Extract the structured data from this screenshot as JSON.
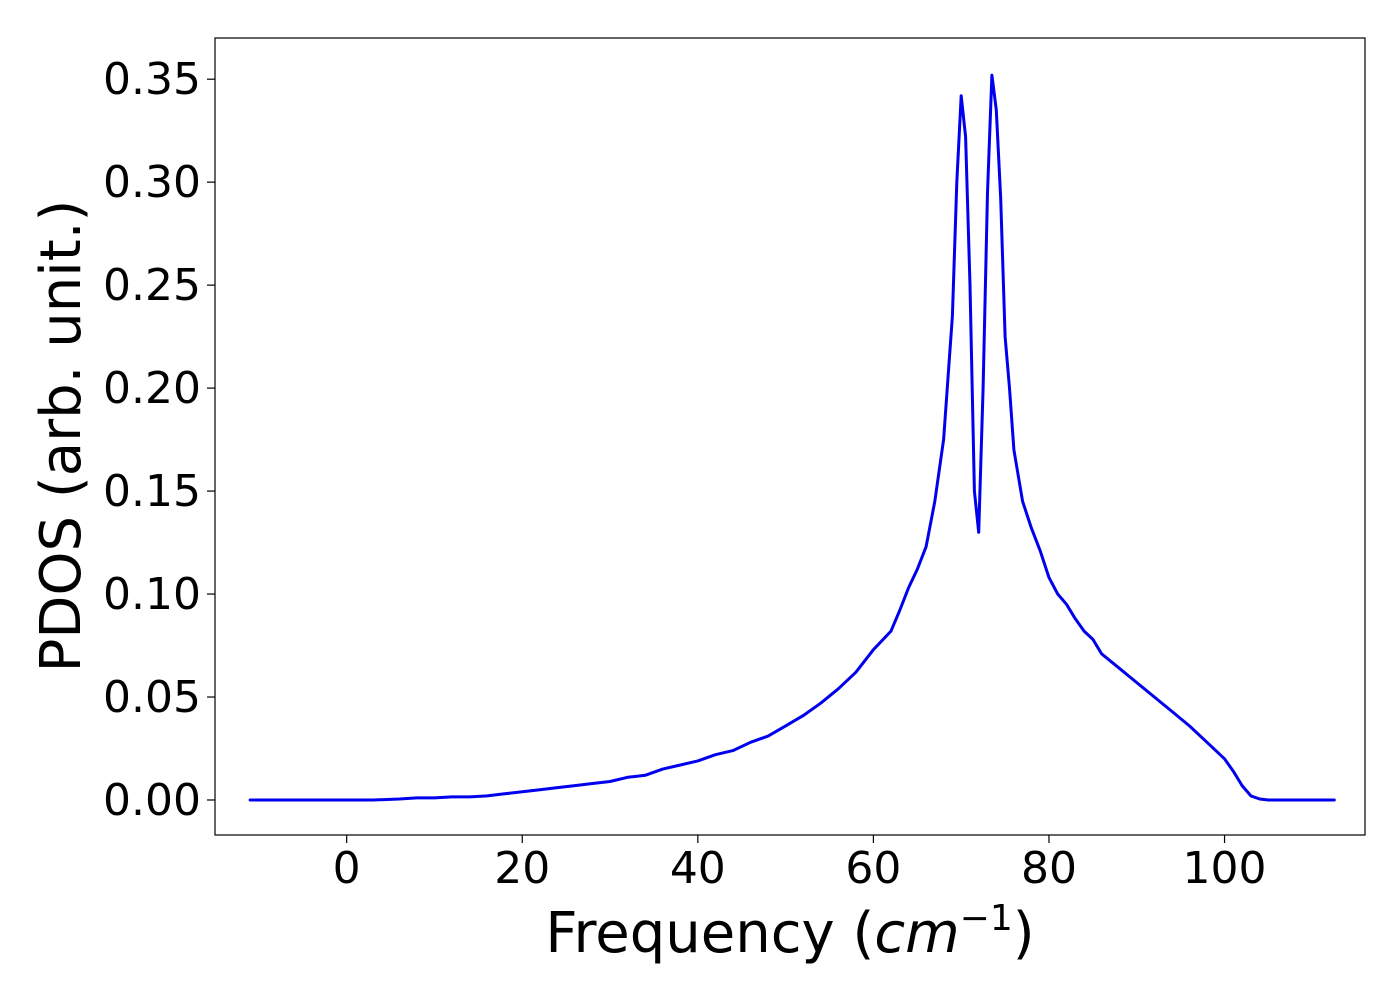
{
  "chart_data": {
    "type": "line",
    "title": "",
    "xlabel_prefix": "Frequency (",
    "xlabel_unit": "cm",
    "xlabel_exponent": "−1",
    "xlabel_suffix": ")",
    "ylabel": "PDOS (arb. unit.)",
    "xlim": [
      -15,
      116
    ],
    "ylim": [
      -0.017,
      0.37
    ],
    "xticks": [
      0,
      20,
      40,
      60,
      80,
      100
    ],
    "xtick_labels": [
      "0",
      "20",
      "40",
      "60",
      "80",
      "100"
    ],
    "yticks": [
      0.0,
      0.05,
      0.1,
      0.15,
      0.2,
      0.25,
      0.3,
      0.35
    ],
    "ytick_labels": [
      "0.00",
      "0.05",
      "0.10",
      "0.15",
      "0.20",
      "0.25",
      "0.30",
      "0.35"
    ],
    "grid": false,
    "series": [
      {
        "color": "#0000ee",
        "x": [
          -11,
          -5,
          0,
          3,
          6,
          8,
          10,
          12,
          14,
          16,
          18,
          20,
          22,
          24,
          26,
          28,
          30,
          32,
          34,
          36,
          38,
          40,
          42,
          44,
          46,
          48,
          50,
          52,
          54,
          56,
          58,
          60,
          62,
          63,
          64,
          65,
          66,
          67,
          68,
          69,
          69.5,
          70,
          70.5,
          71,
          71.5,
          72,
          72.5,
          73,
          73.5,
          74,
          74.5,
          75,
          75.5,
          76,
          77,
          78,
          79,
          80,
          81,
          82,
          83,
          84,
          85,
          86,
          88,
          90,
          92,
          94,
          96,
          98,
          100,
          101,
          102,
          103,
          104,
          105,
          106,
          108,
          110,
          112.5
        ],
        "y": [
          0.0,
          0.0,
          0.0,
          0.0,
          0.0005,
          0.001,
          0.001,
          0.0015,
          0.0015,
          0.002,
          0.003,
          0.004,
          0.005,
          0.006,
          0.007,
          0.008,
          0.009,
          0.011,
          0.012,
          0.015,
          0.017,
          0.019,
          0.022,
          0.024,
          0.028,
          0.031,
          0.036,
          0.041,
          0.047,
          0.054,
          0.062,
          0.073,
          0.082,
          0.092,
          0.103,
          0.112,
          0.123,
          0.145,
          0.175,
          0.235,
          0.3,
          0.342,
          0.322,
          0.25,
          0.15,
          0.13,
          0.2,
          0.295,
          0.352,
          0.335,
          0.292,
          0.225,
          0.2,
          0.17,
          0.145,
          0.132,
          0.121,
          0.108,
          0.1,
          0.095,
          0.088,
          0.082,
          0.078,
          0.071,
          0.064,
          0.057,
          0.05,
          0.043,
          0.036,
          0.028,
          0.02,
          0.014,
          0.007,
          0.002,
          0.0005,
          0.0,
          0.0,
          0.0,
          0.0,
          0.0
        ]
      }
    ]
  }
}
